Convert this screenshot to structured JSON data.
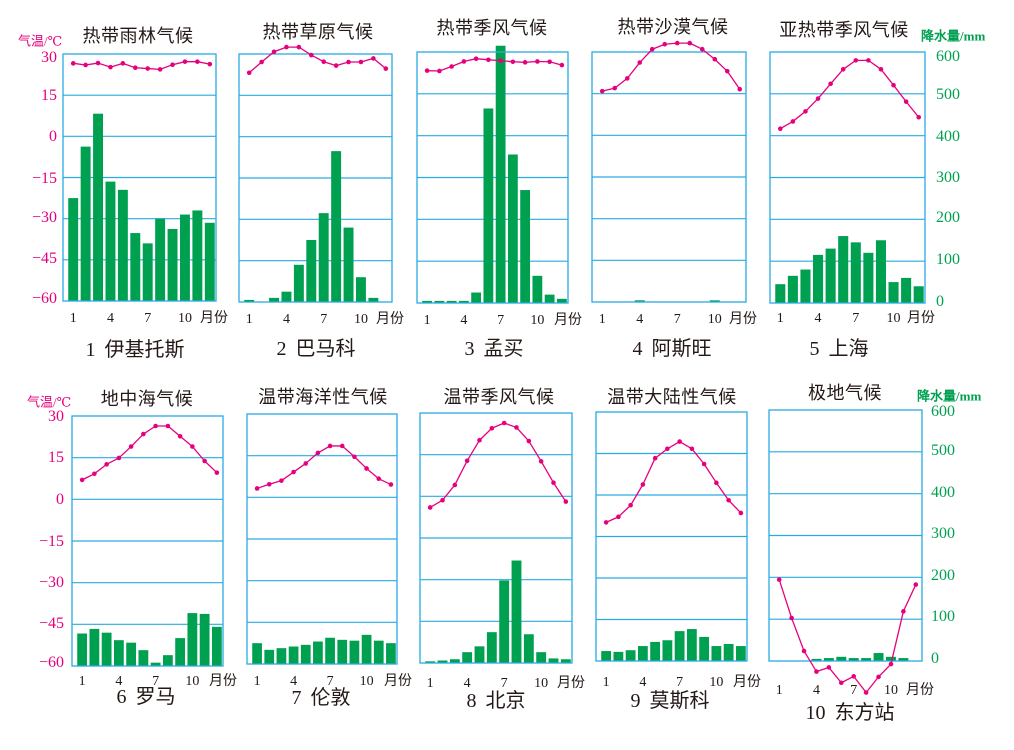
{
  "figure": {
    "temperature_axis": {
      "label": "气温/℃",
      "ticks": [
        "30",
        "15",
        "0",
        "−15",
        "−30",
        "−45",
        "−60"
      ]
    },
    "precipitation_axis": {
      "label": "降水量/mm",
      "ticks": [
        "600",
        "500",
        "400",
        "300",
        "200",
        "100",
        "0"
      ]
    },
    "month_ticks": [
      "1",
      "4",
      "7",
      "10"
    ],
    "month_unit": "月份",
    "colors": {
      "temperature": "#e6007e",
      "precipitation": "#00a051",
      "grid": "#29abe2",
      "text": "#231815"
    }
  },
  "chart_data": [
    {
      "type": "bar+line",
      "title": "热带雨林气候",
      "number": "1",
      "station": "伊基托斯",
      "categories": [
        "1",
        "2",
        "3",
        "4",
        "5",
        "6",
        "7",
        "8",
        "9",
        "10",
        "11",
        "12"
      ],
      "xlabel": "月份",
      "series": [
        {
          "name": "气温",
          "type": "line",
          "axis": "left",
          "unit": "℃",
          "values": [
            26.6,
            26.0,
            26.7,
            25.2,
            26.6,
            25.0,
            24.7,
            24.4,
            26.1,
            27.2,
            27.2,
            26.3
          ]
        },
        {
          "name": "降水量",
          "type": "bar",
          "axis": "right",
          "unit": "mm",
          "values": [
            250,
            375,
            455,
            290,
            270,
            165,
            140,
            200,
            175,
            210,
            220,
            190
          ]
        }
      ],
      "ylabel_left": "气温/℃",
      "ylim_left": [
        -60,
        30
      ],
      "ylabel_right": "降水量/mm",
      "ylim_right": [
        0,
        600
      ],
      "grid": true
    },
    {
      "type": "bar+line",
      "title": "热带草原气候",
      "number": "2",
      "station": "巴马科",
      "categories": [
        "1",
        "2",
        "3",
        "4",
        "5",
        "6",
        "7",
        "8",
        "9",
        "10",
        "11",
        "12"
      ],
      "xlabel": "月份",
      "series": [
        {
          "name": "气温",
          "type": "line",
          "axis": "left",
          "unit": "℃",
          "values": [
            23.2,
            27.1,
            30.8,
            32.5,
            32.5,
            29.6,
            27.2,
            25.8,
            27.1,
            27.1,
            28.4,
            24.7
          ]
        },
        {
          "name": "降水量",
          "type": "bar",
          "axis": "right",
          "unit": "mm",
          "values": [
            5,
            0,
            10,
            25,
            90,
            150,
            215,
            365,
            180,
            60,
            10,
            0
          ]
        }
      ],
      "ylabel_left": "气温/℃",
      "ylim_left": [
        -60,
        30
      ],
      "ylabel_right": "降水量/mm",
      "ylim_right": [
        0,
        600
      ],
      "grid": true
    },
    {
      "type": "bar+line",
      "title": "热带季风气候",
      "number": "3",
      "station": "孟买",
      "categories": [
        "1",
        "2",
        "3",
        "4",
        "5",
        "6",
        "7",
        "8",
        "9",
        "10",
        "11",
        "12"
      ],
      "xlabel": "月份",
      "series": [
        {
          "name": "气温",
          "type": "line",
          "axis": "left",
          "unit": "℃",
          "values": [
            23.3,
            23.2,
            24.8,
            26.6,
            27.6,
            27.2,
            26.9,
            26.5,
            26.3,
            26.6,
            26.5,
            25.3
          ]
        },
        {
          "name": "降水量",
          "type": "bar",
          "axis": "right",
          "unit": "mm",
          "values": [
            5,
            5,
            5,
            5,
            25,
            465,
            615,
            355,
            270,
            65,
            20,
            10
          ]
        }
      ],
      "ylabel_left": "气温/℃",
      "ylim_left": [
        -60,
        30
      ],
      "ylabel_right": "降水量/mm",
      "ylim_right": [
        0,
        600
      ],
      "grid": true
    },
    {
      "type": "bar+line",
      "title": "热带沙漠气候",
      "number": "4",
      "station": "阿斯旺",
      "categories": [
        "1",
        "2",
        "3",
        "4",
        "5",
        "6",
        "7",
        "8",
        "9",
        "10",
        "11",
        "12"
      ],
      "xlabel": "月份",
      "series": [
        {
          "name": "气温",
          "type": "line",
          "axis": "left",
          "unit": "℃",
          "values": [
            15.9,
            17.0,
            20.5,
            26.2,
            31.0,
            32.8,
            33.2,
            33.2,
            31.0,
            27.4,
            23.1,
            16.6
          ]
        },
        {
          "name": "降水量",
          "type": "bar",
          "axis": "right",
          "unit": "mm",
          "values": [
            0,
            0,
            0,
            4,
            0,
            0,
            0,
            0,
            0,
            4,
            0,
            0
          ]
        }
      ],
      "ylabel_left": "气温/℃",
      "ylim_left": [
        -60,
        30
      ],
      "ylabel_right": "降水量/mm",
      "ylim_right": [
        0,
        600
      ],
      "grid": true
    },
    {
      "type": "bar+line",
      "title": "亚热带季风气候",
      "number": "5",
      "station": "上海",
      "categories": [
        "1",
        "2",
        "3",
        "4",
        "5",
        "6",
        "7",
        "8",
        "9",
        "10",
        "11",
        "12"
      ],
      "xlabel": "月份",
      "series": [
        {
          "name": "气温",
          "type": "line",
          "axis": "left",
          "unit": "℃",
          "values": [
            2.5,
            5.1,
            8.7,
            13.3,
            18.6,
            23.8,
            27.0,
            27.0,
            23.8,
            18.1,
            12.2,
            6.6
          ]
        },
        {
          "name": "降水量",
          "type": "bar",
          "axis": "right",
          "unit": "mm",
          "values": [
            45,
            65,
            80,
            115,
            130,
            160,
            145,
            120,
            150,
            50,
            60,
            40
          ]
        }
      ],
      "ylabel_left": "气温/℃",
      "ylim_left": [
        -60,
        30
      ],
      "ylabel_right": "降水量/mm",
      "ylim_right": [
        0,
        600
      ],
      "grid": true
    },
    {
      "type": "bar+line",
      "title": "地中海气候",
      "number": "6",
      "station": "罗马",
      "categories": [
        "1",
        "2",
        "3",
        "4",
        "5",
        "6",
        "7",
        "8",
        "9",
        "10",
        "11",
        "12"
      ],
      "xlabel": "月份",
      "series": [
        {
          "name": "气温",
          "type": "line",
          "axis": "left",
          "unit": "℃",
          "values": [
            7.0,
            9.2,
            12.6,
            14.9,
            19.0,
            23.5,
            26.4,
            26.4,
            22.7,
            19.0,
            13.8,
            9.6
          ]
        },
        {
          "name": "降水量",
          "type": "bar",
          "axis": "right",
          "unit": "mm",
          "values": [
            78,
            89,
            80,
            62,
            56,
            38,
            8,
            26,
            67,
            127,
            125,
            94
          ]
        }
      ],
      "ylabel_left": "气温/℃",
      "ylim_left": [
        -60,
        30
      ],
      "ylabel_right": "降水量/mm",
      "ylim_right": [
        0,
        600
      ],
      "grid": true
    },
    {
      "type": "bar+line",
      "title": "温带海洋性气候",
      "number": "7",
      "station": "伦敦",
      "categories": [
        "1",
        "2",
        "3",
        "4",
        "5",
        "6",
        "7",
        "8",
        "9",
        "10",
        "11",
        "12"
      ],
      "xlabel": "月份",
      "series": [
        {
          "name": "气温",
          "type": "line",
          "axis": "left",
          "unit": "℃",
          "values": [
            3.2,
            4.7,
            6.0,
            9.1,
            12.2,
            16.0,
            18.5,
            18.5,
            14.6,
            10.4,
            6.7,
            4.6
          ]
        },
        {
          "name": "降水量",
          "type": "bar",
          "axis": "right",
          "unit": "mm",
          "values": [
            50,
            34,
            38,
            42,
            46,
            54,
            63,
            58,
            56,
            70,
            56,
            50
          ]
        }
      ],
      "ylabel_left": "气温/℃",
      "ylim_left": [
        -60,
        30
      ],
      "ylabel_right": "降水量/mm",
      "ylim_right": [
        0,
        600
      ],
      "grid": true
    },
    {
      "type": "bar+line",
      "title": "温带季风气候",
      "number": "8",
      "station": "北京",
      "categories": [
        "1",
        "2",
        "3",
        "4",
        "5",
        "6",
        "7",
        "8",
        "9",
        "10",
        "11",
        "12"
      ],
      "xlabel": "月份",
      "series": [
        {
          "name": "气温",
          "type": "line",
          "axis": "left",
          "unit": "℃",
          "values": [
            -4.0,
            -1.4,
            4.1,
            12.8,
            20.2,
            24.5,
            26.4,
            24.8,
            19.9,
            12.6,
            4.9,
            -1.9
          ]
        },
        {
          "name": "降水量",
          "type": "bar",
          "axis": "right",
          "unit": "mm",
          "values": [
            4,
            6,
            9,
            26,
            40,
            74,
            198,
            246,
            69,
            26,
            11,
            9
          ]
        }
      ],
      "ylabel_left": "气温/℃",
      "ylim_left": [
        -60,
        30
      ],
      "ylabel_right": "降水量/mm",
      "ylim_right": [
        0,
        600
      ],
      "grid": true
    },
    {
      "type": "bar+line",
      "title": "温带大陆性气候",
      "number": "9",
      "station": "莫斯科",
      "categories": [
        "1",
        "2",
        "3",
        "4",
        "5",
        "6",
        "7",
        "8",
        "9",
        "10",
        "11",
        "12"
      ],
      "xlabel": "月份",
      "series": [
        {
          "name": "气温",
          "type": "line",
          "axis": "left",
          "unit": "℃",
          "values": [
            -9.9,
            -7.9,
            -3.7,
            3.8,
            13.3,
            16.7,
            19.3,
            16.7,
            11.2,
            4.4,
            -1.9,
            -6.5
          ]
        },
        {
          "name": "降水量",
          "type": "bar",
          "axis": "right",
          "unit": "mm",
          "values": [
            24,
            22,
            26,
            36,
            46,
            50,
            72,
            77,
            58,
            36,
            41,
            36
          ]
        }
      ],
      "ylabel_left": "气温/℃",
      "ylim_left": [
        -60,
        30
      ],
      "ylabel_right": "降水量/mm",
      "ylim_right": [
        0,
        600
      ],
      "grid": true
    },
    {
      "type": "bar+line",
      "title": "极地气候",
      "number": "10",
      "station": "东方站",
      "categories": [
        "1",
        "2",
        "3",
        "4",
        "5",
        "6",
        "7",
        "8",
        "9",
        "10",
        "11",
        "12"
      ],
      "xlabel": "月份",
      "series": [
        {
          "name": "气温",
          "type": "line",
          "axis": "left",
          "unit": "℃",
          "values": [
            -30.8,
            -44.6,
            -56.4,
            -63.8,
            -62.3,
            -67.8,
            -65.5,
            -71.3,
            -65.7,
            -61.1,
            -42.2,
            -32.6
          ]
        },
        {
          "name": "降水量",
          "type": "bar",
          "axis": "right",
          "unit": "mm",
          "values": [
            0,
            0,
            0,
            5,
            7,
            10,
            7,
            7,
            19,
            10,
            7,
            0
          ]
        }
      ],
      "ylabel_left": "气温/℃",
      "ylim_left": [
        -60,
        30
      ],
      "ylabel_right": "降水量/mm",
      "ylim_right": [
        0,
        600
      ],
      "grid": true
    }
  ]
}
